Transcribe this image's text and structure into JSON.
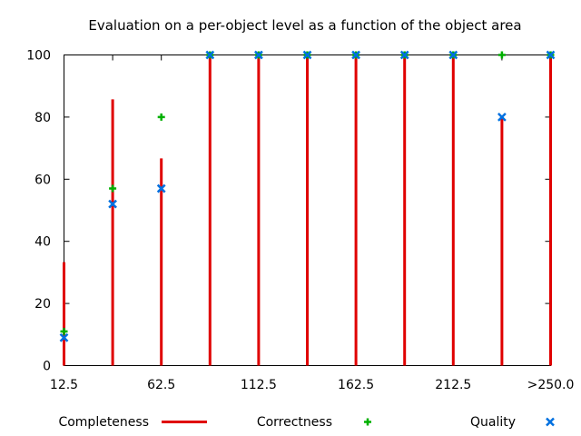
{
  "chart_data": {
    "type": "bar",
    "title": "Evaluation on a per-object level as a function of the object area",
    "xlabel": "",
    "ylabel": "",
    "ylim": [
      0,
      100
    ],
    "y_ticks": [
      0,
      20,
      40,
      60,
      80,
      100
    ],
    "grid": false,
    "legend_position": "bottom",
    "categories": [
      "12.5",
      "",
      "62.5",
      "",
      "112.5",
      "",
      "162.5",
      "",
      "212.5",
      "",
      ">250.0"
    ],
    "series": [
      {
        "name": "Completeness",
        "style": "impulse",
        "color": "#e00000",
        "values": [
          33.3,
          85.7,
          66.7,
          100,
          100,
          100,
          100,
          100,
          100,
          80,
          100
        ]
      },
      {
        "name": "Correctness",
        "style": "plus",
        "color": "#00b000",
        "values": [
          11,
          57,
          80,
          100,
          100,
          100,
          100,
          100,
          100,
          100,
          100
        ]
      },
      {
        "name": "Quality",
        "style": "cross",
        "color": "#0070e0",
        "values": [
          9,
          52,
          57,
          100,
          100,
          100,
          100,
          100,
          100,
          80,
          100
        ]
      }
    ]
  }
}
